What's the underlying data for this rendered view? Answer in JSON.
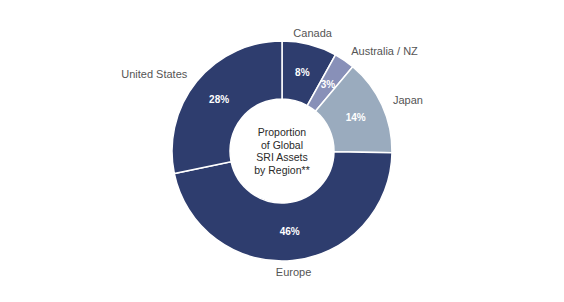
{
  "chart_data": {
    "type": "pie",
    "categories": [
      "Canada",
      "Australia / NZ",
      "Japan",
      "Europe",
      "United States"
    ],
    "values": [
      8,
      3,
      14,
      46,
      28
    ],
    "value_labels": [
      "8%",
      "3%",
      "14%",
      "46%",
      "28%"
    ],
    "colors": [
      "#2e3d6e",
      "#8890b8",
      "#9aabbe",
      "#2e3d6e",
      "#2e3d6e"
    ],
    "annotations": [
      "Proportion\nof Global\nSRI Assets\nby Region**"
    ]
  }
}
